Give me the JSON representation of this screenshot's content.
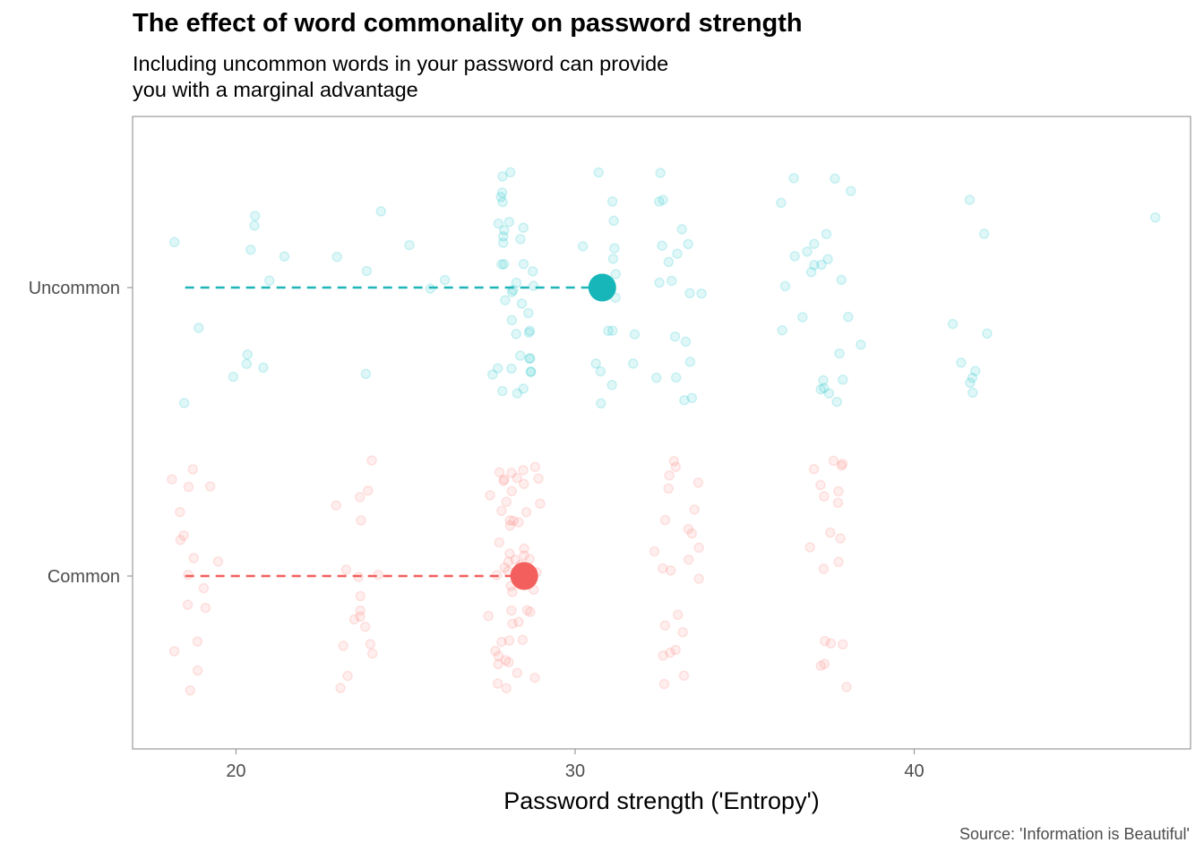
{
  "chart_data": {
    "type": "scatter",
    "title": "The effect of word commonality on password strength",
    "subtitle": "Including uncommon words in your password can provide\nyou with a marginal advantage",
    "xlabel": "Password strength ('Entropy')",
    "ylabel": "",
    "caption": "Source: 'Information is Beautiful'",
    "xlim": [
      16.95,
      48.15
    ],
    "x_ticks": [
      "20",
      "30",
      "40"
    ],
    "x_tick_values": [
      20,
      30,
      40
    ],
    "categories": [
      "Common",
      "Uncommon"
    ],
    "grid": false,
    "legend": "none",
    "colors": {
      "Common": "#F8766D",
      "Uncommon": "#00BFC4",
      "Common_line": "#F25F5C",
      "Uncommon_line": "#1FB5B8",
      "panel_border": "#999999",
      "text": "#4d4d4d"
    },
    "series": [
      {
        "name": "Uncommon",
        "mean": 30.8,
        "segment_from": 18.5,
        "x": [
          18.1,
          18.4,
          18.8,
          20.1,
          20.2,
          20.3,
          20.4,
          20.5,
          20.5,
          20.6,
          21.2,
          21.3,
          23.1,
          23.6,
          23.9,
          24.1,
          25.3,
          25.8,
          25.9,
          27.6,
          27.6,
          27.7,
          27.7,
          27.7,
          27.8,
          27.8,
          27.8,
          27.9,
          27.9,
          27.9,
          28.0,
          28.0,
          28.0,
          28.1,
          28.1,
          28.1,
          28.2,
          28.2,
          28.2,
          28.3,
          28.3,
          28.3,
          28.4,
          28.4,
          28.4,
          28.5,
          28.5,
          28.5,
          28.6,
          28.6,
          28.6,
          28.7,
          28.7,
          28.7,
          28.8,
          28.8,
          28.8,
          30.5,
          30.5,
          30.6,
          30.7,
          30.8,
          30.8,
          30.9,
          30.9,
          31.0,
          31.0,
          31.1,
          31.1,
          31.2,
          31.2,
          31.3,
          31.4,
          31.5,
          31.7,
          32.4,
          32.5,
          32.6,
          32.6,
          32.7,
          32.7,
          32.8,
          32.8,
          32.9,
          33.0,
          33.1,
          33.2,
          33.3,
          33.3,
          33.4,
          33.4,
          33.5,
          33.5,
          33.6,
          36.0,
          36.2,
          36.3,
          36.4,
          36.5,
          36.6,
          36.8,
          37.0,
          37.0,
          37.1,
          37.2,
          37.2,
          37.3,
          37.3,
          37.4,
          37.5,
          37.5,
          37.6,
          37.6,
          37.7,
          37.8,
          37.9,
          38.0,
          38.1,
          38.2,
          41.4,
          41.5,
          41.6,
          41.7,
          41.8,
          41.8,
          41.9,
          41.9,
          42.0,
          47.0
        ]
      },
      {
        "name": "Common",
        "mean": 28.5,
        "segment_from": 18.5,
        "x": [
          18.0,
          18.2,
          18.3,
          18.5,
          18.6,
          18.7,
          18.8,
          18.9,
          19.0,
          19.1,
          19.2,
          19.3,
          18.5,
          18.7,
          19.0,
          18.6,
          18.9,
          23.0,
          23.1,
          23.2,
          23.3,
          23.4,
          23.5,
          23.6,
          23.7,
          23.8,
          23.9,
          24.0,
          24.1,
          23.3,
          23.5,
          23.7,
          23.9,
          23.4,
          23.8,
          27.6,
          27.6,
          27.7,
          27.7,
          27.7,
          27.8,
          27.8,
          27.8,
          27.9,
          27.9,
          27.9,
          28.0,
          28.0,
          28.0,
          28.1,
          28.1,
          28.1,
          28.2,
          28.2,
          28.2,
          28.3,
          28.3,
          28.3,
          28.4,
          28.4,
          28.4,
          28.5,
          28.5,
          28.5,
          28.6,
          28.6,
          28.6,
          28.7,
          28.7,
          28.7,
          28.8,
          28.8,
          28.8,
          27.6,
          27.8,
          28.0,
          28.2,
          28.4,
          28.6,
          28.8,
          27.7,
          27.9,
          28.1,
          28.3,
          28.5,
          28.7,
          27.7,
          28.0,
          28.3,
          28.6,
          32.4,
          32.5,
          32.6,
          32.7,
          32.8,
          32.9,
          33.0,
          33.1,
          33.2,
          33.3,
          33.4,
          33.5,
          32.5,
          32.7,
          32.9,
          33.1,
          33.3,
          33.5,
          32.6,
          33.0,
          33.4,
          32.8,
          33.2,
          37.0,
          37.1,
          37.2,
          37.3,
          37.4,
          37.5,
          37.6,
          37.7,
          37.8,
          37.9,
          38.0,
          38.1,
          37.2,
          37.4,
          37.6,
          37.8,
          38.0,
          37.3,
          37.7
        ]
      }
    ]
  }
}
